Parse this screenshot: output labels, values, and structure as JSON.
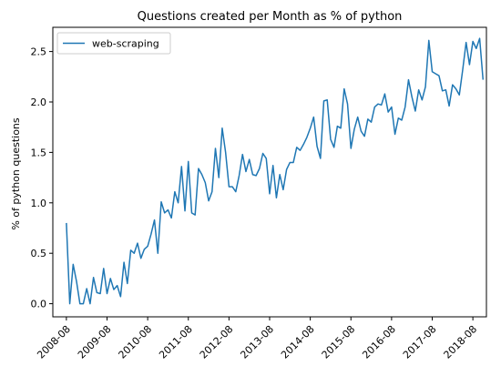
{
  "chart_data": {
    "type": "line",
    "title": "Questions created per Month as % of python",
    "xlabel": "",
    "ylabel": "% of python questions",
    "x_ticks": [
      "2008-08",
      "2009-08",
      "2010-08",
      "2011-08",
      "2012-08",
      "2013-08",
      "2014-08",
      "2015-08",
      "2016-08",
      "2017-08",
      "2018-08"
    ],
    "y_ticks": [
      "0.0",
      "0.5",
      "1.0",
      "1.5",
      "2.0",
      "2.5"
    ],
    "ylim": [
      -0.13,
      2.74
    ],
    "xlim": [
      "2008-04",
      "2018-12"
    ],
    "grid": false,
    "legend_position": "top-left",
    "series": [
      {
        "name": "web-scraping",
        "color": "#1f77b4",
        "start": "2008-08",
        "frequency": "monthly",
        "values": [
          0.8,
          0.0,
          0.39,
          0.22,
          0.0,
          0.0,
          0.15,
          0.0,
          0.26,
          0.11,
          0.1,
          0.35,
          0.1,
          0.25,
          0.14,
          0.18,
          0.07,
          0.41,
          0.2,
          0.53,
          0.5,
          0.6,
          0.45,
          0.54,
          0.57,
          0.69,
          0.83,
          0.5,
          1.01,
          0.9,
          0.93,
          0.85,
          1.11,
          1.0,
          1.36,
          0.92,
          1.41,
          0.9,
          0.88,
          1.34,
          1.28,
          1.2,
          1.02,
          1.11,
          1.54,
          1.25,
          1.74,
          1.5,
          1.16,
          1.16,
          1.11,
          1.27,
          1.48,
          1.31,
          1.43,
          1.28,
          1.27,
          1.34,
          1.49,
          1.44,
          1.09,
          1.37,
          1.05,
          1.28,
          1.13,
          1.33,
          1.4,
          1.4,
          1.55,
          1.52,
          1.58,
          1.65,
          1.74,
          1.85,
          1.56,
          1.44,
          2.01,
          2.02,
          1.63,
          1.55,
          1.76,
          1.74,
          2.13,
          1.98,
          1.54,
          1.73,
          1.85,
          1.71,
          1.66,
          1.83,
          1.8,
          1.95,
          1.98,
          1.97,
          2.08,
          1.9,
          1.95,
          1.68,
          1.84,
          1.82,
          1.95,
          2.22,
          2.05,
          1.91,
          2.12,
          2.02,
          2.15,
          2.61,
          2.3,
          2.28,
          2.26,
          2.11,
          2.12,
          1.96,
          2.17,
          2.13,
          2.07,
          2.32,
          2.59,
          2.37,
          2.6,
          2.53,
          2.63,
          2.22
        ]
      }
    ]
  }
}
